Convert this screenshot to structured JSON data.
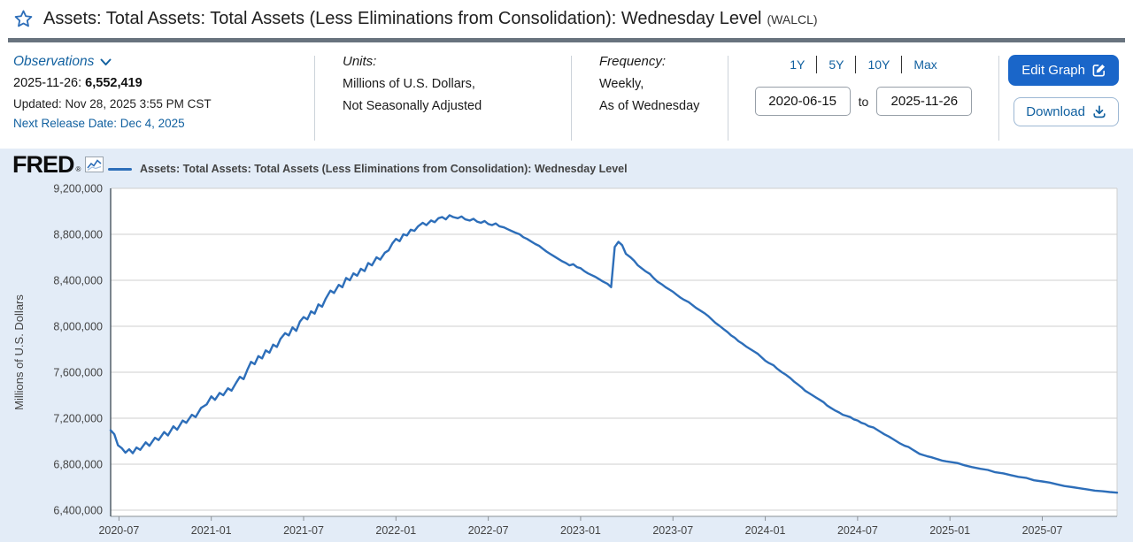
{
  "header": {
    "title": "Assets: Total Assets: Total Assets (Less Eliminations from Consolidation): Wednesday Level",
    "ticker_label": "(WALCL)"
  },
  "tools": {
    "observations": {
      "label": "Observations",
      "latest_date": "2025-11-26:",
      "latest_value": "6,552,419",
      "updated": "Updated: Nov 28, 2025 3:55 PM CST",
      "next_release": "Next Release Date: Dec 4, 2025"
    },
    "units": {
      "label": "Units:",
      "line1": "Millions of U.S. Dollars,",
      "line2": "Not Seasonally Adjusted"
    },
    "frequency": {
      "label": "Frequency:",
      "line1": "Weekly,",
      "line2": "As of Wednesday"
    },
    "range": {
      "presets": [
        "1Y",
        "5Y",
        "10Y",
        "Max"
      ],
      "start": "2020-06-15",
      "to_label": "to",
      "end": "2025-11-26"
    },
    "actions": {
      "edit": "Edit Graph",
      "download": "Download"
    }
  },
  "chart": {
    "brand": "FRED",
    "legend": "Assets: Total Assets: Total Assets (Less Eliminations from Consolidation): Wednesday Level"
  },
  "colors": {
    "line": "#2d6eb9",
    "link": "#1261a0",
    "edit_button": "#1a66c9",
    "chart_background": "#e3ecf7"
  },
  "chart_data": {
    "type": "line",
    "title": "Assets: Total Assets: Total Assets (Less Eliminations from Consolidation): Wednesday Level",
    "ylabel": "Millions of U.S. Dollars",
    "xlabel": "",
    "grid": "horizontal",
    "legend_position": "top",
    "x_range": [
      2020.455,
      2025.905
    ],
    "ylim": [
      6400000,
      9200000
    ],
    "y_ticks": [
      9200000,
      8800000,
      8400000,
      8000000,
      7600000,
      7200000,
      6800000,
      6400000
    ],
    "x_ticks": [
      {
        "label": "2020-07",
        "t": 2020.5
      },
      {
        "label": "2021-01",
        "t": 2021.0
      },
      {
        "label": "2021-07",
        "t": 2021.5
      },
      {
        "label": "2022-01",
        "t": 2022.0
      },
      {
        "label": "2022-07",
        "t": 2022.5
      },
      {
        "label": "2023-01",
        "t": 2023.0
      },
      {
        "label": "2023-07",
        "t": 2023.5
      },
      {
        "label": "2024-01",
        "t": 2024.0
      },
      {
        "label": "2024-07",
        "t": 2024.5
      },
      {
        "label": "2025-01",
        "t": 2025.0
      },
      {
        "label": "2025-07",
        "t": 2025.5
      }
    ],
    "latest_observation": {
      "date": "2025-11-26",
      "value": 6552419
    },
    "series": [
      {
        "name": "Assets: Total Assets: Total Assets (Less Eliminations from Consolidation): Wednesday Level",
        "units": "Millions of U.S. Dollars",
        "points": [
          [
            2020.455,
            7095000
          ],
          [
            2020.475,
            7060000
          ],
          [
            2020.495,
            6965000
          ],
          [
            2020.515,
            6940000
          ],
          [
            2020.535,
            6900000
          ],
          [
            2020.555,
            6930000
          ],
          [
            2020.575,
            6895000
          ],
          [
            2020.595,
            6945000
          ],
          [
            2020.615,
            6925000
          ],
          [
            2020.645,
            6990000
          ],
          [
            2020.665,
            6960000
          ],
          [
            2020.695,
            7030000
          ],
          [
            2020.715,
            7010000
          ],
          [
            2020.745,
            7080000
          ],
          [
            2020.765,
            7050000
          ],
          [
            2020.795,
            7130000
          ],
          [
            2020.815,
            7100000
          ],
          [
            2020.845,
            7180000
          ],
          [
            2020.865,
            7160000
          ],
          [
            2020.895,
            7230000
          ],
          [
            2020.915,
            7210000
          ],
          [
            2020.945,
            7290000
          ],
          [
            2020.975,
            7320000
          ],
          [
            2021.0,
            7390000
          ],
          [
            2021.02,
            7360000
          ],
          [
            2021.045,
            7420000
          ],
          [
            2021.065,
            7400000
          ],
          [
            2021.09,
            7460000
          ],
          [
            2021.11,
            7440000
          ],
          [
            2021.135,
            7510000
          ],
          [
            2021.155,
            7560000
          ],
          [
            2021.175,
            7540000
          ],
          [
            2021.195,
            7620000
          ],
          [
            2021.215,
            7690000
          ],
          [
            2021.235,
            7670000
          ],
          [
            2021.255,
            7740000
          ],
          [
            2021.275,
            7720000
          ],
          [
            2021.295,
            7790000
          ],
          [
            2021.315,
            7770000
          ],
          [
            2021.335,
            7840000
          ],
          [
            2021.355,
            7820000
          ],
          [
            2021.375,
            7890000
          ],
          [
            2021.4,
            7940000
          ],
          [
            2021.42,
            7920000
          ],
          [
            2021.44,
            7990000
          ],
          [
            2021.46,
            7960000
          ],
          [
            2021.48,
            8040000
          ],
          [
            2021.5,
            8080000
          ],
          [
            2021.52,
            8060000
          ],
          [
            2021.54,
            8130000
          ],
          [
            2021.56,
            8110000
          ],
          [
            2021.58,
            8190000
          ],
          [
            2021.6,
            8170000
          ],
          [
            2021.62,
            8240000
          ],
          [
            2021.645,
            8310000
          ],
          [
            2021.665,
            8290000
          ],
          [
            2021.69,
            8360000
          ],
          [
            2021.71,
            8340000
          ],
          [
            2021.73,
            8420000
          ],
          [
            2021.75,
            8400000
          ],
          [
            2021.77,
            8460000
          ],
          [
            2021.79,
            8440000
          ],
          [
            2021.81,
            8500000
          ],
          [
            2021.83,
            8480000
          ],
          [
            2021.85,
            8550000
          ],
          [
            2021.87,
            8530000
          ],
          [
            2021.895,
            8600000
          ],
          [
            2021.915,
            8580000
          ],
          [
            2021.94,
            8640000
          ],
          [
            2021.96,
            8660000
          ],
          [
            2021.98,
            8720000
          ],
          [
            2022.0,
            8760000
          ],
          [
            2022.02,
            8740000
          ],
          [
            2022.04,
            8800000
          ],
          [
            2022.06,
            8790000
          ],
          [
            2022.08,
            8840000
          ],
          [
            2022.1,
            8830000
          ],
          [
            2022.12,
            8870000
          ],
          [
            2022.145,
            8900000
          ],
          [
            2022.165,
            8880000
          ],
          [
            2022.19,
            8920000
          ],
          [
            2022.21,
            8905000
          ],
          [
            2022.23,
            8940000
          ],
          [
            2022.25,
            8950000
          ],
          [
            2022.27,
            8930000
          ],
          [
            2022.29,
            8965000
          ],
          [
            2022.31,
            8950000
          ],
          [
            2022.335,
            8940000
          ],
          [
            2022.355,
            8955000
          ],
          [
            2022.375,
            8930000
          ],
          [
            2022.4,
            8920000
          ],
          [
            2022.42,
            8935000
          ],
          [
            2022.44,
            8910000
          ],
          [
            2022.46,
            8900000
          ],
          [
            2022.48,
            8915000
          ],
          [
            2022.5,
            8890000
          ],
          [
            2022.52,
            8880000
          ],
          [
            2022.54,
            8895000
          ],
          [
            2022.56,
            8870000
          ],
          [
            2022.585,
            8860000
          ],
          [
            2022.605,
            8845000
          ],
          [
            2022.625,
            8830000
          ],
          [
            2022.645,
            8815000
          ],
          [
            2022.67,
            8800000
          ],
          [
            2022.69,
            8775000
          ],
          [
            2022.71,
            8760000
          ],
          [
            2022.73,
            8740000
          ],
          [
            2022.755,
            8715000
          ],
          [
            2022.775,
            8700000
          ],
          [
            2022.795,
            8675000
          ],
          [
            2022.815,
            8650000
          ],
          [
            2022.835,
            8630000
          ],
          [
            2022.855,
            8610000
          ],
          [
            2022.875,
            8590000
          ],
          [
            2022.9,
            8565000
          ],
          [
            2022.92,
            8550000
          ],
          [
            2022.94,
            8530000
          ],
          [
            2022.96,
            8540000
          ],
          [
            2022.98,
            8515000
          ],
          [
            2023.0,
            8505000
          ],
          [
            2023.02,
            8480000
          ],
          [
            2023.04,
            8460000
          ],
          [
            2023.06,
            8445000
          ],
          [
            2023.08,
            8430000
          ],
          [
            2023.1,
            8410000
          ],
          [
            2023.12,
            8390000
          ],
          [
            2023.145,
            8370000
          ],
          [
            2023.165,
            8340000
          ],
          [
            2023.185,
            8690000
          ],
          [
            2023.205,
            8735000
          ],
          [
            2023.225,
            8705000
          ],
          [
            2023.245,
            8630000
          ],
          [
            2023.27,
            8600000
          ],
          [
            2023.29,
            8570000
          ],
          [
            2023.31,
            8530000
          ],
          [
            2023.33,
            8505000
          ],
          [
            2023.35,
            8480000
          ],
          [
            2023.375,
            8455000
          ],
          [
            2023.395,
            8420000
          ],
          [
            2023.415,
            8390000
          ],
          [
            2023.44,
            8365000
          ],
          [
            2023.46,
            8340000
          ],
          [
            2023.48,
            8320000
          ],
          [
            2023.5,
            8300000
          ],
          [
            2023.52,
            8275000
          ],
          [
            2023.54,
            8250000
          ],
          [
            2023.56,
            8230000
          ],
          [
            2023.585,
            8210000
          ],
          [
            2023.605,
            8185000
          ],
          [
            2023.625,
            8160000
          ],
          [
            2023.645,
            8140000
          ],
          [
            2023.67,
            8115000
          ],
          [
            2023.69,
            8090000
          ],
          [
            2023.71,
            8060000
          ],
          [
            2023.73,
            8030000
          ],
          [
            2023.755,
            8000000
          ],
          [
            2023.775,
            7975000
          ],
          [
            2023.795,
            7950000
          ],
          [
            2023.815,
            7920000
          ],
          [
            2023.835,
            7900000
          ],
          [
            2023.855,
            7870000
          ],
          [
            2023.875,
            7850000
          ],
          [
            2023.9,
            7820000
          ],
          [
            2023.92,
            7800000
          ],
          [
            2023.94,
            7780000
          ],
          [
            2023.96,
            7760000
          ],
          [
            2023.98,
            7730000
          ],
          [
            2024.0,
            7700000
          ],
          [
            2024.02,
            7680000
          ],
          [
            2024.045,
            7660000
          ],
          [
            2024.065,
            7630000
          ],
          [
            2024.09,
            7600000
          ],
          [
            2024.11,
            7580000
          ],
          [
            2024.135,
            7550000
          ],
          [
            2024.155,
            7520000
          ],
          [
            2024.175,
            7495000
          ],
          [
            2024.195,
            7470000
          ],
          [
            2024.215,
            7440000
          ],
          [
            2024.235,
            7420000
          ],
          [
            2024.255,
            7400000
          ],
          [
            2024.275,
            7380000
          ],
          [
            2024.295,
            7360000
          ],
          [
            2024.315,
            7340000
          ],
          [
            2024.335,
            7310000
          ],
          [
            2024.355,
            7290000
          ],
          [
            2024.375,
            7270000
          ],
          [
            2024.4,
            7250000
          ],
          [
            2024.42,
            7230000
          ],
          [
            2024.44,
            7220000
          ],
          [
            2024.46,
            7210000
          ],
          [
            2024.48,
            7190000
          ],
          [
            2024.5,
            7180000
          ],
          [
            2024.52,
            7160000
          ],
          [
            2024.54,
            7150000
          ],
          [
            2024.56,
            7130000
          ],
          [
            2024.585,
            7120000
          ],
          [
            2024.605,
            7100000
          ],
          [
            2024.625,
            7080000
          ],
          [
            2024.645,
            7060000
          ],
          [
            2024.67,
            7040000
          ],
          [
            2024.69,
            7020000
          ],
          [
            2024.71,
            7000000
          ],
          [
            2024.73,
            6980000
          ],
          [
            2024.755,
            6960000
          ],
          [
            2024.775,
            6950000
          ],
          [
            2024.795,
            6930000
          ],
          [
            2024.815,
            6910000
          ],
          [
            2024.835,
            6890000
          ],
          [
            2024.855,
            6880000
          ],
          [
            2024.875,
            6870000
          ],
          [
            2024.9,
            6860000
          ],
          [
            2024.92,
            6850000
          ],
          [
            2024.94,
            6840000
          ],
          [
            2024.96,
            6830000
          ],
          [
            2024.98,
            6825000
          ],
          [
            2025.0,
            6820000
          ],
          [
            2025.04,
            6810000
          ],
          [
            2025.08,
            6790000
          ],
          [
            2025.12,
            6775000
          ],
          [
            2025.165,
            6760000
          ],
          [
            2025.205,
            6750000
          ],
          [
            2025.245,
            6730000
          ],
          [
            2025.29,
            6720000
          ],
          [
            2025.33,
            6705000
          ],
          [
            2025.37,
            6690000
          ],
          [
            2025.415,
            6680000
          ],
          [
            2025.455,
            6660000
          ],
          [
            2025.5,
            6650000
          ],
          [
            2025.54,
            6640000
          ],
          [
            2025.58,
            6625000
          ],
          [
            2025.62,
            6610000
          ],
          [
            2025.665,
            6600000
          ],
          [
            2025.705,
            6590000
          ],
          [
            2025.745,
            6580000
          ],
          [
            2025.785,
            6570000
          ],
          [
            2025.825,
            6565000
          ],
          [
            2025.865,
            6558000
          ],
          [
            2025.905,
            6552419
          ]
        ]
      }
    ]
  }
}
